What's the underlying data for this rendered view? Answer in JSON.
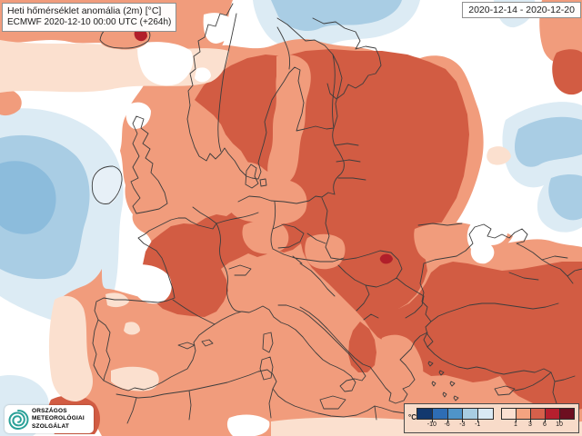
{
  "header": {
    "title_line1": "Heti hőmérséklet anomália (2m) [°C]",
    "title_line2": "ECMWF 2020-12-10 00:00 UTC (+264h)",
    "date_range": "2020-12-14 - 2020-12-20"
  },
  "logo": {
    "line1": "ORSZÁGOS",
    "line2": "METEOROLÓGIAI",
    "line3": "SZOLGÁLAT",
    "text_color": "#cf9468",
    "icon_color": "#2aa198"
  },
  "legend": {
    "unit_label": "°C",
    "background": "#f8dbc9",
    "cold_colors": [
      "#12386e",
      "#2e6db4",
      "#4f94c9",
      "#a8cde2",
      "#d9e9f4"
    ],
    "cold_ticks": [
      "-10",
      "-6",
      "-3",
      "-1"
    ],
    "warm_colors": [
      "#fbdfd0",
      "#f4a380",
      "#d6604b",
      "#b61f2e",
      "#6d0e20"
    ],
    "warm_ticks": [
      "1",
      "3",
      "6",
      "10"
    ]
  },
  "map": {
    "palette": {
      "ocean_neutral": "#ffffff",
      "plus_0_1": "#fbe0cf",
      "plus_1_3": "#f19c7c",
      "plus_3_6": "#d25c43",
      "plus_6_10": "#b11f2a",
      "minus_1_0": "#dcebf4",
      "minus_3_1": "#a9cde4",
      "minus_6_3": "#8cbcdc",
      "ireland_tint": "#e7f0f7",
      "border_line": "#3d3d3d"
    },
    "regions": [
      {
        "name": "atlantic-cold-anomaly",
        "value_range": "-3 to -1 °C"
      },
      {
        "name": "arctic-cold-anomaly",
        "value_range": "-3 to -1 °C"
      },
      {
        "name": "northwest-russia-cold-anomaly",
        "value_range": "-3 to -1 °C"
      },
      {
        "name": "western-southern-europe-warm-anomaly",
        "value_range": "1 to 3 °C"
      },
      {
        "name": "scandinavia-eastern-europe-balkans-turkey-warm-anomaly",
        "value_range": "3 to 6 °C"
      },
      {
        "name": "local-hotspots-iceland-romania",
        "value_range": "6 to 10 °C"
      }
    ]
  }
}
